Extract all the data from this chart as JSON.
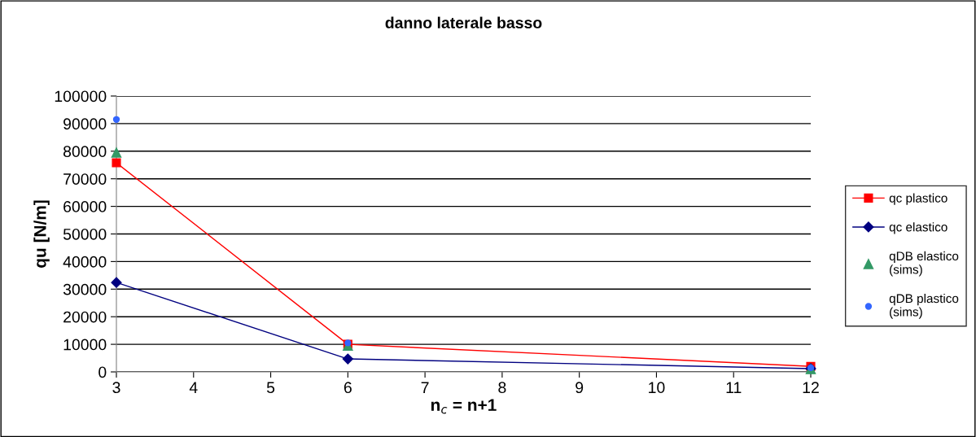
{
  "chart_data": {
    "type": "line",
    "title": "danno laterale basso",
    "xlabel": "n$_{c}$ = n+1",
    "ylabel": "qu [N/m]",
    "x": [
      3,
      6,
      12
    ],
    "xlim": [
      3,
      12
    ],
    "xticks": [
      3,
      4,
      5,
      6,
      7,
      8,
      9,
      10,
      11,
      12
    ],
    "ylim": [
      0,
      100000
    ],
    "yticks": [
      0,
      10000,
      20000,
      30000,
      40000,
      50000,
      60000,
      70000,
      80000,
      90000,
      100000
    ],
    "grid": "y",
    "legend": "right",
    "series": [
      {
        "name": "qc plastico",
        "color": "#ff0000",
        "marker": "square",
        "values": [
          75800,
          10000,
          2000
        ]
      },
      {
        "name": "qc elastico",
        "color": "#000080",
        "marker": "diamond",
        "values": [
          32400,
          4700,
          1200
        ]
      },
      {
        "name": "qDB elastico\n(sims)",
        "type": "scatter",
        "color": "#339966",
        "marker": "triangle",
        "values": [
          79500,
          9500,
          1000
        ]
      },
      {
        "name": "qDB plastico\n(sims)",
        "type": "scatter",
        "color": "#3366ff",
        "marker": "circle",
        "values": [
          91500,
          10500,
          1500
        ]
      }
    ]
  }
}
